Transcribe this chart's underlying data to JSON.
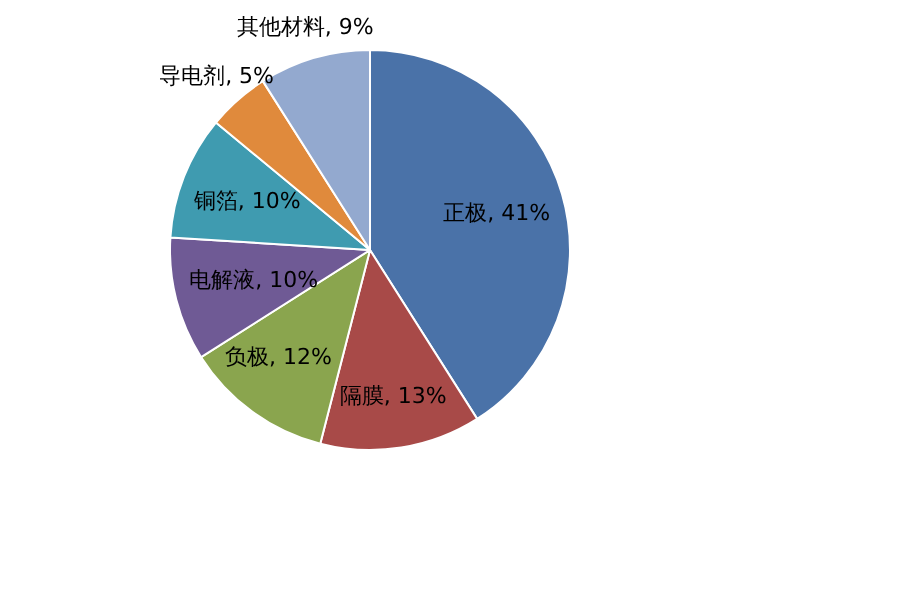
{
  "chart_data": {
    "type": "pie",
    "categories": [
      "正极",
      "隔膜",
      "负极",
      "电解液",
      "铜箔",
      "导电剂",
      "其他材料"
    ],
    "values": [
      41,
      13,
      12,
      10,
      10,
      5,
      9
    ],
    "value_labels": [
      "41%",
      "13%",
      "12%",
      "10%",
      "10%",
      "5%",
      "9%"
    ],
    "colors": [
      "#4a72a8",
      "#a84a48",
      "#8aa54e",
      "#6f5a95",
      "#3f9bb0",
      "#e08a3c",
      "#93a9cf"
    ],
    "legend": false
  }
}
